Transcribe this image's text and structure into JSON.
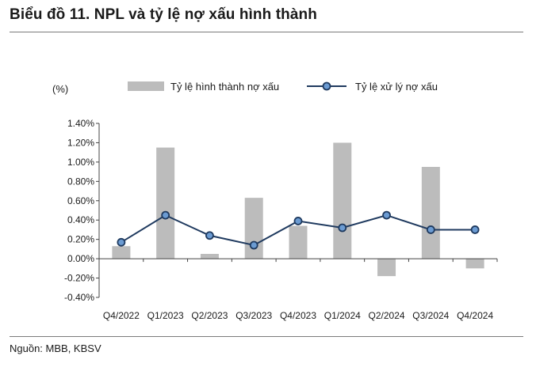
{
  "title": "Biểu đồ 11. NPL và tỷ lệ nợ xấu hình thành",
  "source": "Nguồn: MBB, KBSV",
  "unit_label": "(%)",
  "colors": {
    "bar": "#bcbcbc",
    "line": "#1f3a5f",
    "marker_fill": "#6b9bd2",
    "axis": "#444444"
  },
  "chart_data": {
    "type": "bar",
    "categories": [
      "Q4/2022",
      "Q1/2023",
      "Q2/2023",
      "Q3/2023",
      "Q4/2023",
      "Q1/2024",
      "Q2/2024",
      "Q3/2024",
      "Q4/2024"
    ],
    "series": [
      {
        "name": "Tỷ lệ hình thành nợ xấu",
        "type": "bar",
        "values": [
          0.13,
          1.15,
          0.05,
          0.63,
          0.34,
          1.2,
          -0.18,
          0.95,
          -0.1
        ]
      },
      {
        "name": "Tỷ lệ xử lý nợ xấu",
        "type": "line",
        "values": [
          0.17,
          0.45,
          0.24,
          0.14,
          0.39,
          0.32,
          0.45,
          0.3,
          0.3
        ]
      }
    ],
    "ylim": [
      -0.4,
      1.4
    ],
    "yticks": [
      "-0.40%",
      "-0.20%",
      "0.00%",
      "0.20%",
      "0.40%",
      "0.60%",
      "0.80%",
      "1.00%",
      "1.20%",
      "1.40%"
    ],
    "legend_position": "top",
    "grid": false
  }
}
